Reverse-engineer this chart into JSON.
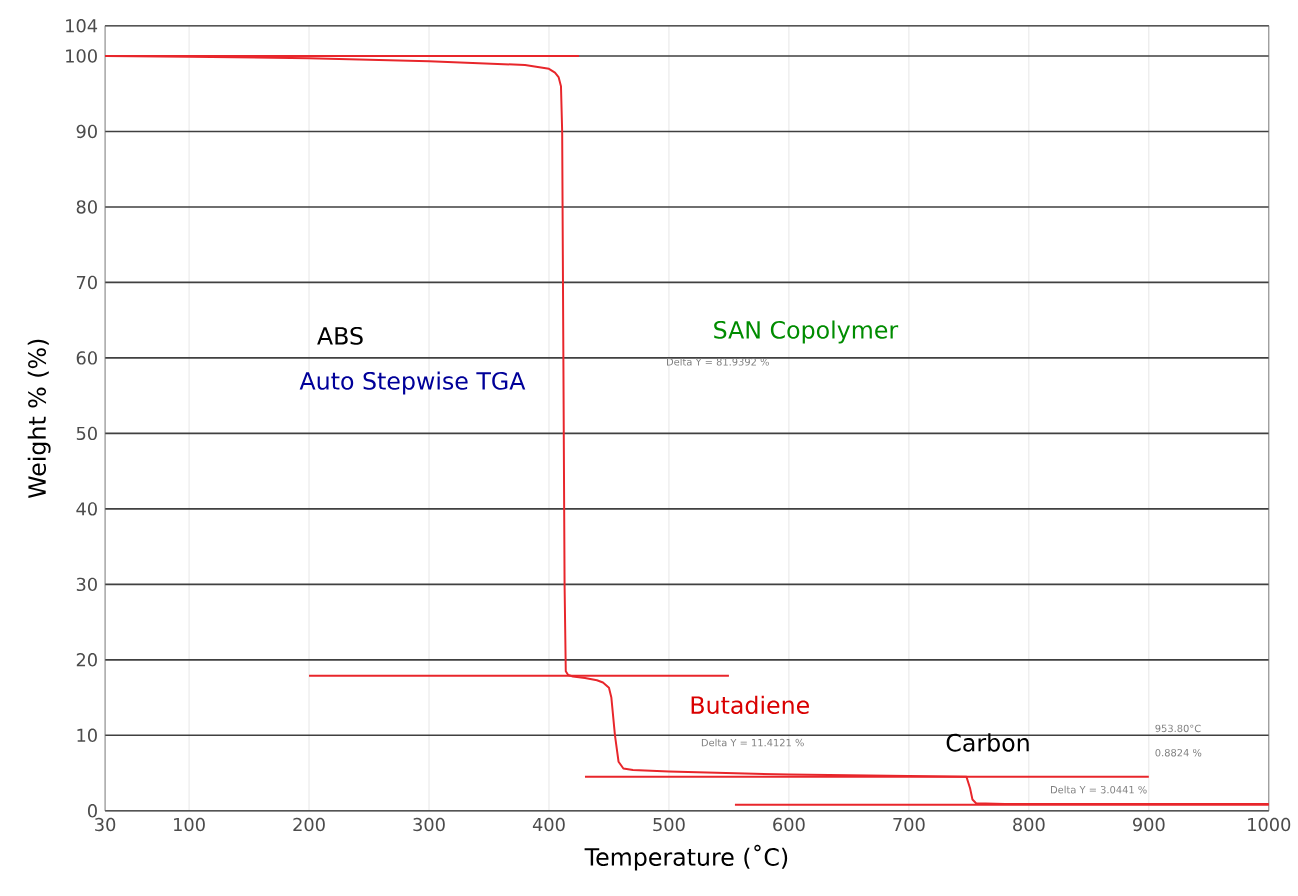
{
  "chart_data": {
    "type": "line",
    "xlabel": "Temperature (˚C)",
    "ylabel": "Weight % (%)",
    "xlim": [
      30,
      1000
    ],
    "ylim": [
      0,
      104
    ],
    "xticks": [
      30,
      100,
      200,
      300,
      400,
      500,
      600,
      700,
      800,
      900,
      1000
    ],
    "yticks": [
      0,
      10,
      20,
      30,
      40,
      50,
      60,
      70,
      80,
      90,
      100,
      104
    ],
    "grid": true,
    "marker": "none",
    "line_style": "solid",
    "series": [
      {
        "color": "#e8262b",
        "x": [
          30,
          100,
          200,
          300,
          380,
          400,
          405,
          408,
          410,
          411,
          412,
          413,
          414,
          416,
          420,
          430,
          440,
          445,
          450,
          452,
          455,
          458,
          462,
          470,
          500,
          550,
          600,
          650,
          700,
          748,
          751,
          753,
          756,
          780,
          850,
          1000
        ],
        "values": [
          100,
          99.9,
          99.7,
          99.3,
          98.8,
          98.3,
          97.8,
          97.2,
          96,
          90,
          60,
          30,
          18.5,
          18,
          17.8,
          17.6,
          17.3,
          17,
          16.3,
          15,
          10,
          6.5,
          5.6,
          5.4,
          5.2,
          5.0,
          4.8,
          4.7,
          4.6,
          4.5,
          3,
          1.5,
          1,
          0.9,
          0.9,
          0.9
        ]
      },
      {
        "color": "#e8262b",
        "x": [
          30,
          425
        ],
        "values": [
          100,
          100
        ]
      },
      {
        "color": "#e8262b",
        "x": [
          200,
          550
        ],
        "values": [
          17.9,
          17.9
        ]
      },
      {
        "color": "#e8262b",
        "x": [
          430,
          900
        ],
        "values": [
          4.5,
          4.5
        ]
      },
      {
        "color": "#e8262b",
        "x": [
          555,
          1000
        ],
        "values": [
          0.8,
          0.8
        ]
      }
    ],
    "annotations": [
      "ABS",
      "Auto Stepwise TGA",
      "SAN Copolymer",
      "Delta Y = 81.9392 %",
      "Butadiene",
      "Delta Y = 11.4121 %",
      "Carbon",
      "953.80°C",
      "0.8824 %",
      "Delta Y = 3.0441 %"
    ]
  }
}
